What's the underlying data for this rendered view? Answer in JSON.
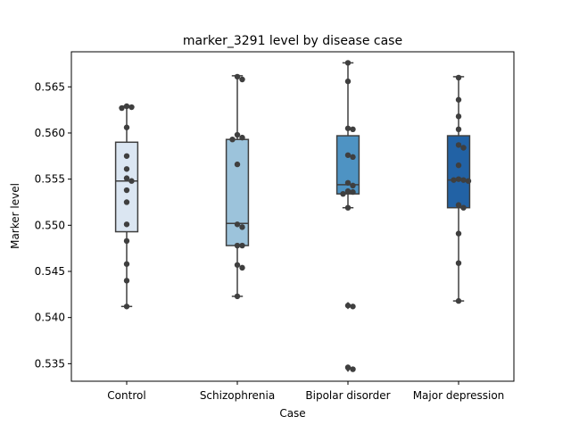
{
  "chart_data": {
    "type": "box",
    "title": "marker_3291 level by disease case",
    "xlabel": "Case",
    "ylabel": "Marker level",
    "ylim": [
      0.5331,
      0.5688
    ],
    "yticks": [
      0.535,
      0.54,
      0.545,
      0.55,
      0.555,
      0.56,
      0.565
    ],
    "ytick_labels": [
      "0.535",
      "0.540",
      "0.545",
      "0.550",
      "0.555",
      "0.560",
      "0.565"
    ],
    "grid": false,
    "categories": [
      "Control",
      "Schizophrenia",
      "Bipolar disorder",
      "Major depression"
    ],
    "colors": [
      "#dbe6f2",
      "#9cc3db",
      "#4e93c3",
      "#2262a5"
    ],
    "boxes": [
      {
        "category": "Control",
        "whisker_low": 0.5412,
        "q1": 0.5493,
        "median": 0.5548,
        "q3": 0.559,
        "whisker_high": 0.5629,
        "outliers": []
      },
      {
        "category": "Schizophrenia",
        "whisker_low": 0.5423,
        "q1": 0.5478,
        "median": 0.5502,
        "q3": 0.5593,
        "whisker_high": 0.5662,
        "outliers": []
      },
      {
        "category": "Bipolar disorder",
        "whisker_low": 0.5519,
        "q1": 0.5534,
        "median": 0.5544,
        "q3": 0.5597,
        "whisker_high": 0.5676,
        "outliers": [
          0.5413,
          0.5345
        ]
      },
      {
        "category": "Major depression",
        "whisker_low": 0.5418,
        "q1": 0.5519,
        "median": 0.5549,
        "q3": 0.5597,
        "whisker_high": 0.5661,
        "outliers": []
      }
    ],
    "points": [
      {
        "category": "Control",
        "values": [
          0.5628,
          0.5629,
          0.5627,
          0.5606,
          0.5575,
          0.5561,
          0.5551,
          0.5548,
          0.5538,
          0.5525,
          0.5501,
          0.5483,
          0.5458,
          0.544,
          0.5412
        ]
      },
      {
        "category": "Schizophrenia",
        "values": [
          0.5661,
          0.5658,
          0.5598,
          0.5595,
          0.5593,
          0.5566,
          0.5501,
          0.5498,
          0.5478,
          0.5478,
          0.5457,
          0.5454,
          0.5423
        ]
      },
      {
        "category": "Bipolar disorder",
        "values": [
          0.5676,
          0.5656,
          0.5605,
          0.5604,
          0.5576,
          0.5574,
          0.5546,
          0.5543,
          0.5536,
          0.5537,
          0.5534,
          0.5519,
          0.5413,
          0.5412,
          0.5346,
          0.5344
        ]
      },
      {
        "category": "Major depression",
        "values": [
          0.566,
          0.5636,
          0.5618,
          0.5604,
          0.5587,
          0.5584,
          0.5565,
          0.555,
          0.5549,
          0.5549,
          0.5548,
          0.5522,
          0.5519,
          0.5491,
          0.5459,
          0.5418
        ]
      }
    ]
  }
}
